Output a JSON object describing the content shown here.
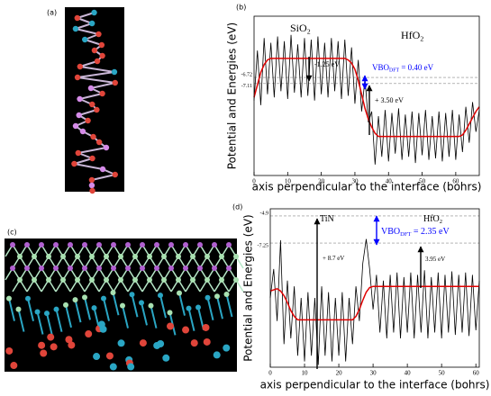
{
  "images": [
    {
      "label": "(a)"
    },
    {
      "label": "(c)"
    }
  ],
  "chart_data": [
    {
      "type": "line",
      "panel_label": "(b)",
      "x_label": "axis perpendicular to the interface (bohrs)",
      "y_label": "Potential and Energies (eV)",
      "x": [
        0,
        1,
        2,
        3,
        4,
        5,
        6,
        7,
        8,
        9,
        10,
        11,
        12,
        13,
        14,
        15,
        16,
        17,
        18,
        19,
        20,
        21,
        22,
        23,
        24,
        25,
        26,
        27,
        28,
        29,
        30,
        31,
        32,
        33,
        34,
        35,
        36,
        37,
        38,
        39,
        40,
        41,
        42,
        43,
        44,
        45,
        46,
        47,
        48,
        49,
        50,
        51,
        52,
        53,
        54,
        55,
        56,
        57,
        58,
        59,
        60,
        61,
        62,
        63,
        64,
        65,
        66,
        67
      ],
      "series": [
        {
          "color": "#000000",
          "values": [
            -8.2,
            -5.0,
            -8.5,
            -4.2,
            -7.8,
            -4.5,
            -8.0,
            -4.1,
            -7.6,
            -4.4,
            -8.1,
            -4.0,
            -7.7,
            -4.6,
            -8.0,
            -4.2,
            -7.9,
            -4.3,
            -8.2,
            -4.1,
            -7.8,
            -4.5,
            -8.0,
            -4.2,
            -7.6,
            -4.4,
            -8.1,
            -4.3,
            -7.9,
            -4.8,
            -8.4,
            -5.6,
            -8.9,
            -6.8,
            -9.6,
            -8.9,
            -12.3,
            -9.2,
            -11.8,
            -8.8,
            -12.1,
            -9.0,
            -11.6,
            -8.7,
            -12.0,
            -9.1,
            -11.8,
            -8.9,
            -12.2,
            -9.0,
            -11.7,
            -8.8,
            -12.0,
            -9.2,
            -11.9,
            -8.9,
            -12.1,
            -9.0,
            -11.8,
            -8.8,
            -12.0,
            -9.1,
            -11.5,
            -8.6,
            -10.9,
            -8.3,
            -10.2,
            -8.8
          ]
        },
        {
          "color": "#e00000",
          "values": [
            -8.0,
            -7.2,
            -6.4,
            -5.9,
            -5.6,
            -5.5,
            -5.5,
            -5.5,
            -5.5,
            -5.5,
            -5.5,
            -5.5,
            -5.5,
            -5.5,
            -5.5,
            -5.5,
            -5.5,
            -5.5,
            -5.5,
            -5.5,
            -5.5,
            -5.5,
            -5.5,
            -5.5,
            -5.5,
            -5.5,
            -5.5,
            -5.5,
            -5.6,
            -5.8,
            -6.2,
            -6.9,
            -7.8,
            -8.7,
            -9.4,
            -9.9,
            -10.3,
            -10.5,
            -10.5,
            -10.5,
            -10.5,
            -10.5,
            -10.5,
            -10.5,
            -10.5,
            -10.5,
            -10.5,
            -10.5,
            -10.5,
            -10.5,
            -10.5,
            -10.5,
            -10.5,
            -10.5,
            -10.5,
            -10.5,
            -10.5,
            -10.5,
            -10.5,
            -10.5,
            -10.5,
            -10.5,
            -10.4,
            -10.1,
            -9.7,
            -9.3,
            -8.9,
            -8.6
          ]
        }
      ],
      "xlim": [
        0,
        67
      ],
      "xticks": [
        0,
        10,
        20,
        30,
        40,
        50,
        60
      ],
      "ylim": [
        -13.0,
        -2.8
      ],
      "yticks": [
        -7.11,
        -6.72
      ],
      "annotations": [
        {
          "text": "SiO",
          "sub": "2"
        },
        {
          "text": "HfO",
          "sub": "2"
        },
        {
          "text": "-1.25 eV"
        },
        {
          "text": "VBO",
          "sub": "DFT",
          "rest": " = 0.40 eV",
          "color": "#0000ff"
        },
        {
          "text": "+ 3.50 eV"
        }
      ]
    },
    {
      "type": "line",
      "panel_label": "(d)",
      "x_label": "axis perpendicular to the interface (bohrs)",
      "y_label": "Potential and Energies (eV)",
      "x": [
        0,
        1,
        2,
        3,
        4,
        5,
        6,
        7,
        8,
        9,
        10,
        11,
        12,
        13,
        14,
        15,
        16,
        17,
        18,
        19,
        20,
        21,
        22,
        23,
        24,
        25,
        26,
        27,
        28,
        29,
        30,
        31,
        32,
        33,
        34,
        35,
        36,
        37,
        38,
        39,
        40,
        41,
        42,
        43,
        44,
        45,
        46,
        47,
        48,
        49,
        50,
        51,
        52,
        53,
        54,
        55,
        56,
        57,
        58,
        59,
        60,
        61
      ],
      "series": [
        {
          "color": "#000000",
          "values": [
            -12,
            -9.5,
            -14,
            -7.0,
            -16,
            -10.5,
            -15.5,
            -11,
            -17,
            -12,
            -17.5,
            -11.5,
            -17,
            -12,
            -17.8,
            -11,
            -17,
            -11.5,
            -17.5,
            -12,
            -17,
            -11.5,
            -17.5,
            -12,
            -16,
            -11,
            -14,
            -9,
            -6.9,
            -9.5,
            -13,
            -10,
            -15,
            -10.5,
            -15.5,
            -10,
            -15,
            -9.8,
            -15.5,
            -10.2,
            -15,
            -9.8,
            -15.5,
            -10,
            -15,
            -9.6,
            -15.5,
            -10.2,
            -15,
            -9.8,
            -15.5,
            -10,
            -15,
            -9.7,
            -15.2,
            -10,
            -15,
            -9.8,
            -15.3,
            -10,
            -14.8,
            -10.5
          ]
        },
        {
          "color": "#e00000",
          "values": [
            -11.4,
            -11.3,
            -11.2,
            -11.4,
            -11.8,
            -12.4,
            -13.1,
            -13.6,
            -13.9,
            -13.9,
            -13.9,
            -13.9,
            -13.9,
            -13.9,
            -13.9,
            -13.9,
            -13.9,
            -13.9,
            -13.9,
            -13.9,
            -13.9,
            -13.9,
            -13.9,
            -13.9,
            -13.9,
            -13.6,
            -13.0,
            -12.2,
            -11.5,
            -11.1,
            -11.0,
            -11.0,
            -11.0,
            -11.0,
            -11.0,
            -11.0,
            -11.0,
            -11.0,
            -11.0,
            -11.0,
            -11.0,
            -11.0,
            -11.0,
            -11.0,
            -11.0,
            -11.0,
            -11.0,
            -11.0,
            -11.0,
            -11.0,
            -11.0,
            -11.0,
            -11.0,
            -11.0,
            -11.0,
            -11.0,
            -11.0,
            -11.0,
            -11.0,
            -11.0,
            -11.0,
            -11.0
          ]
        }
      ],
      "xlim": [
        0,
        61
      ],
      "xticks": [
        0,
        10,
        20,
        30,
        40,
        50,
        60
      ],
      "ylim": [
        -18.0,
        -4.28
      ],
      "yticks": [
        -7.25,
        -4.9
      ],
      "annotations": [
        {
          "text": "TiN"
        },
        {
          "text": "HfO",
          "sub": "2"
        },
        {
          "text": "+ 8.7 eV"
        },
        {
          "text": "VBO",
          "sub": "DFT",
          "rest": " = 2.35 eV",
          "color": "#0000ff"
        },
        {
          "text": "3.95 eV"
        }
      ]
    }
  ]
}
